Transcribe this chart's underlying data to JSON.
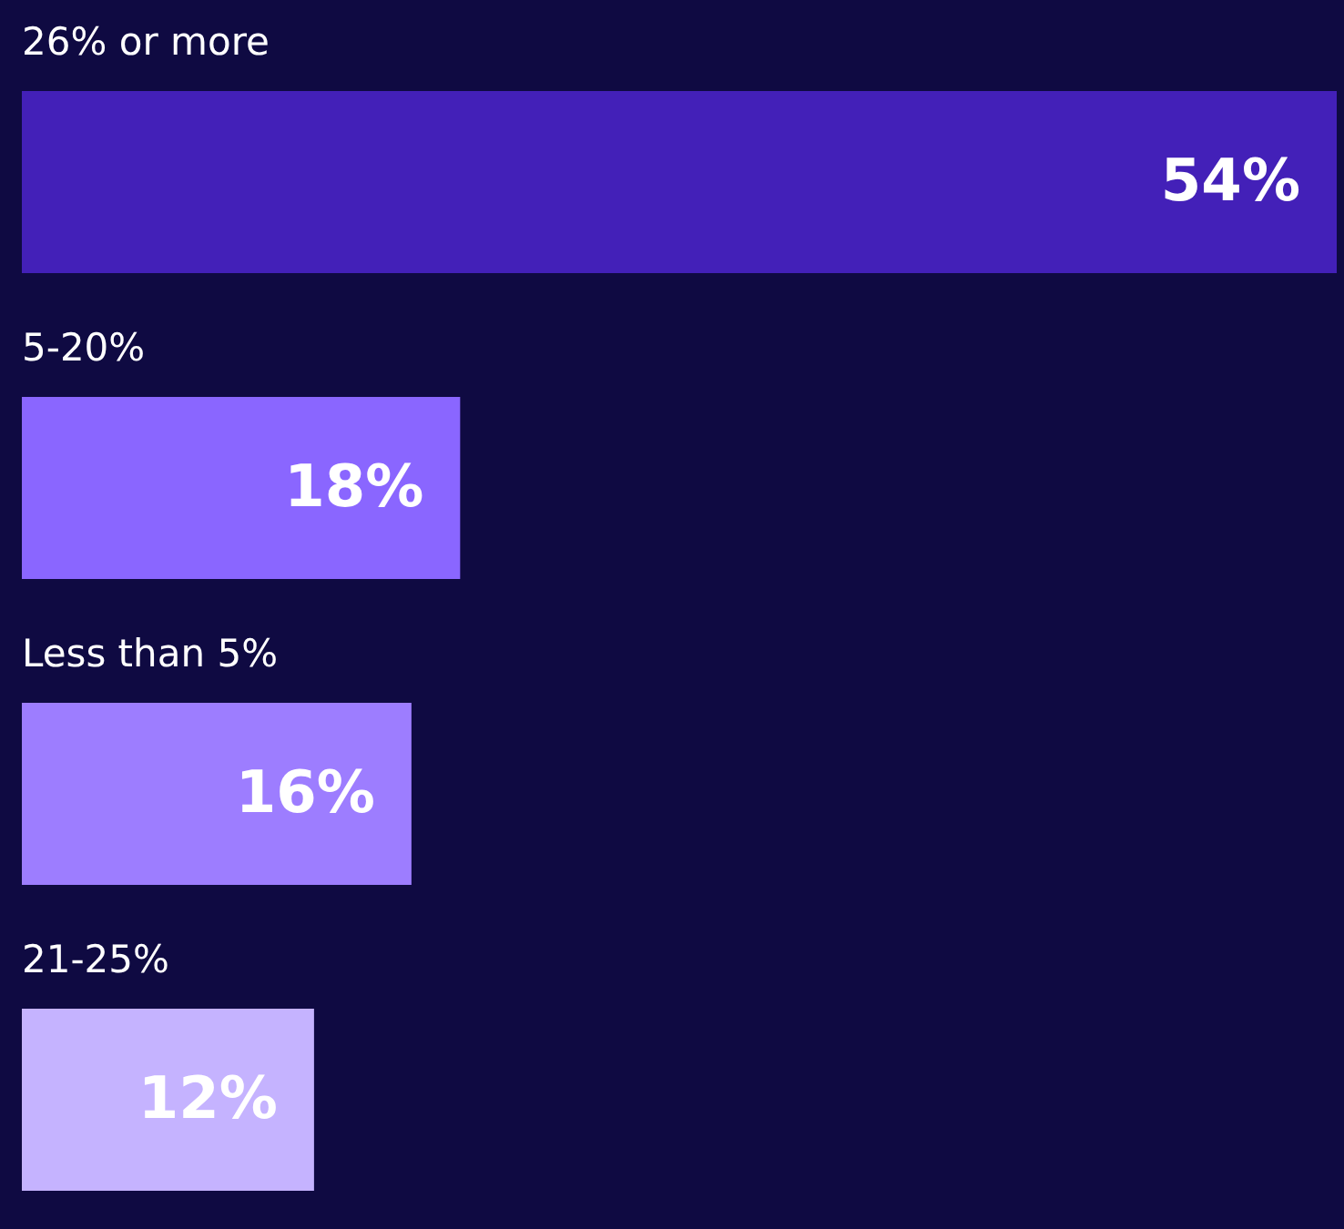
{
  "chart_data": {
    "type": "bar",
    "orientation": "horizontal",
    "categories": [
      "26% or more",
      "5-20%",
      "Less than 5%",
      "21-25%"
    ],
    "values": [
      54,
      18,
      16,
      12
    ],
    "colors": [
      "#4320b8",
      "#8a66ff",
      "#9d7dff",
      "#c5b3ff"
    ],
    "value_labels": [
      "54%",
      "18%",
      "16%",
      "12%"
    ]
  }
}
